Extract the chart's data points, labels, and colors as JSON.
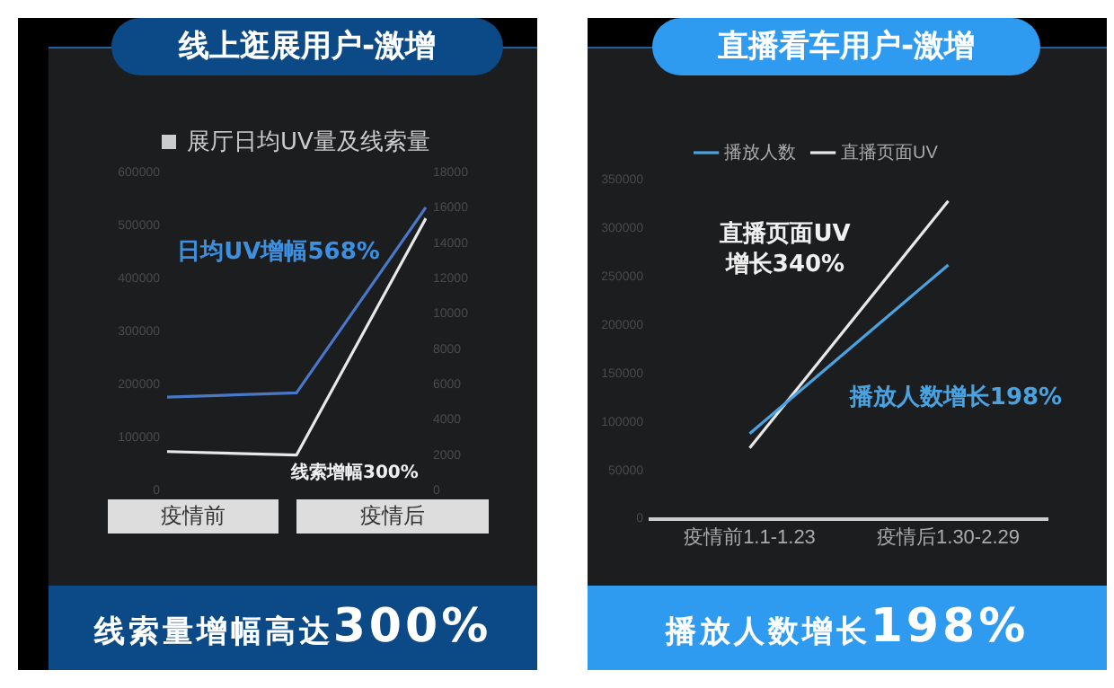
{
  "chart_data": [
    {
      "type": "line",
      "title": "线上逛展用户-激增",
      "subtitle": "展厅日均UV量及线索量",
      "categories": [
        null,
        null,
        null
      ],
      "series": [
        {
          "color": "#4a78c8",
          "values": [
            176000,
            184000,
            534000
          ]
        },
        {
          "color": "#e8e8e8",
          "values": [
            2200,
            2000,
            15400
          ],
          "axis": "y2"
        }
      ],
      "ylim": [
        0,
        600000
      ],
      "yticks": [
        0,
        100000,
        200000,
        300000,
        400000,
        500000,
        600000
      ],
      "y2lim": [
        0,
        18000
      ],
      "y2ticks": [
        0,
        2000,
        4000,
        6000,
        8000,
        10000,
        12000,
        14000,
        16000,
        18000
      ],
      "grid": false,
      "legend": false,
      "annotations": [
        "日均UV增幅568%",
        "线索增幅300%",
        "疫情前",
        "疫情后",
        "线索量增幅高达300%"
      ]
    },
    {
      "type": "line",
      "title": "直播看车用户-激增",
      "categories": [
        "疫情前1.1-1.23",
        "疫情后1.30-2.29"
      ],
      "series": [
        {
          "name": "播放人数",
          "color": "#4aa3e0",
          "values": [
            88000,
            262000
          ]
        },
        {
          "name": "直播页面UV",
          "color": "#e8e8e8",
          "values": [
            73000,
            328000
          ]
        }
      ],
      "ylim": [
        0,
        350000
      ],
      "yticks": [
        0,
        50000,
        100000,
        150000,
        200000,
        250000,
        300000,
        350000
      ],
      "grid": false,
      "legend": "top",
      "annotations": [
        "直播页面UV\n增长340%",
        "播放人数增长198%",
        "播放人数增长198%"
      ]
    }
  ]
}
